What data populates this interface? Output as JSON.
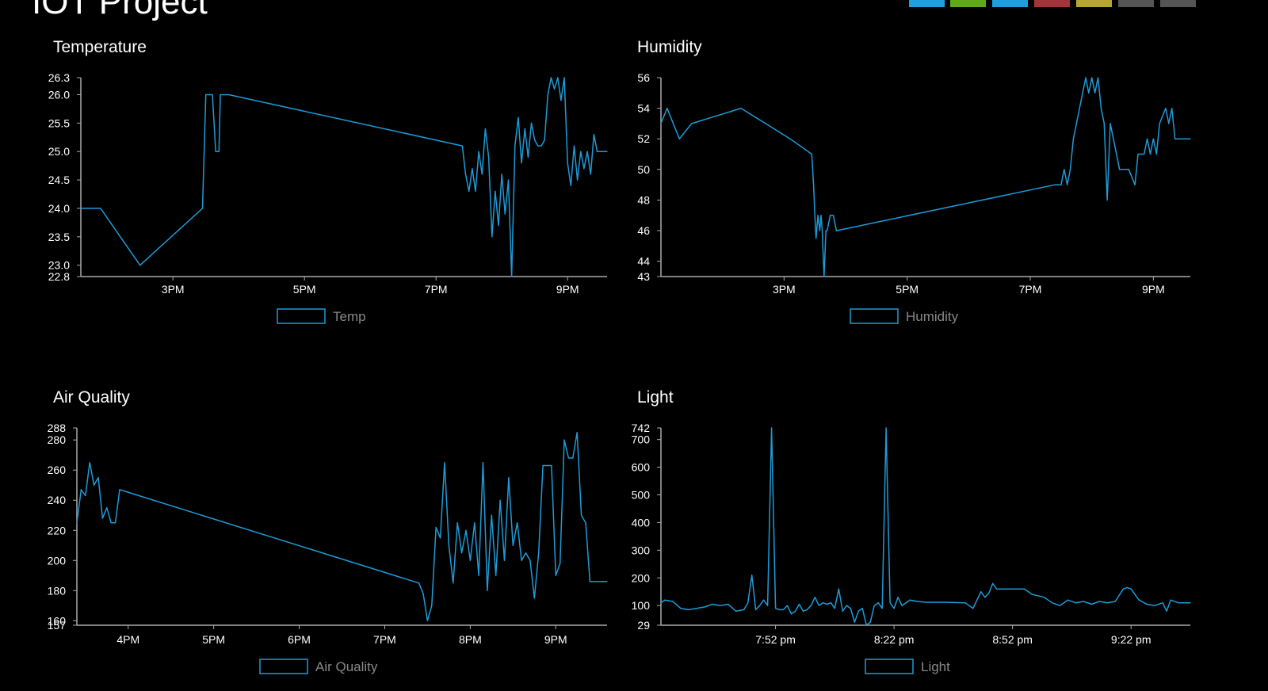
{
  "app_title": "IOT Project",
  "swatches": [
    {
      "name": "swatch-blue",
      "color": "#1ba1e2"
    },
    {
      "name": "swatch-green",
      "color": "#60a917"
    },
    {
      "name": "swatch-blue-2",
      "color": "#1ba1e2"
    },
    {
      "name": "swatch-red",
      "color": "#a4343a"
    },
    {
      "name": "swatch-olive",
      "color": "#b7a531"
    },
    {
      "name": "swatch-gray",
      "color": "#555555"
    },
    {
      "name": "swatch-gray-2",
      "color": "#555555"
    }
  ],
  "line_color": "#1e9bd7",
  "axis_color": "#aaaaaa",
  "chart_data": [
    {
      "id": "temperature",
      "type": "line",
      "title": "Temperature",
      "legend": "Temp",
      "x_axis": "time",
      "x_ticks": [
        "3PM",
        "5PM",
        "7PM",
        "9PM"
      ],
      "x_tick_values": [
        15,
        17,
        19,
        21
      ],
      "xlim": [
        13.6,
        21.6
      ],
      "y_ticks": [
        "22.8",
        "23.0",
        "23.5",
        "24.0",
        "24.5",
        "25.0",
        "25.5",
        "26.0",
        "26.3"
      ],
      "ylim": [
        22.8,
        26.3
      ],
      "points": [
        [
          13.6,
          24.0
        ],
        [
          13.9,
          24.0
        ],
        [
          14.5,
          23.0
        ],
        [
          15.45,
          24.0
        ],
        [
          15.5,
          26.0
        ],
        [
          15.6,
          26.0
        ],
        [
          15.65,
          25.0
        ],
        [
          15.7,
          25.0
        ],
        [
          15.72,
          26.0
        ],
        [
          15.85,
          26.0
        ],
        [
          19.4,
          25.1
        ],
        [
          19.45,
          24.6
        ],
        [
          19.5,
          24.3
        ],
        [
          19.55,
          24.7
        ],
        [
          19.6,
          24.3
        ],
        [
          19.65,
          25.0
        ],
        [
          19.7,
          24.6
        ],
        [
          19.75,
          25.4
        ],
        [
          19.8,
          24.9
        ],
        [
          19.85,
          23.5
        ],
        [
          19.9,
          24.3
        ],
        [
          19.95,
          23.7
        ],
        [
          20.0,
          24.6
        ],
        [
          20.05,
          23.9
        ],
        [
          20.1,
          24.5
        ],
        [
          20.15,
          22.8
        ],
        [
          20.2,
          25.1
        ],
        [
          20.25,
          25.6
        ],
        [
          20.3,
          24.8
        ],
        [
          20.35,
          25.4
        ],
        [
          20.4,
          24.9
        ],
        [
          20.45,
          25.5
        ],
        [
          20.5,
          25.2
        ],
        [
          20.55,
          25.1
        ],
        [
          20.6,
          25.1
        ],
        [
          20.65,
          25.2
        ],
        [
          20.7,
          26.0
        ],
        [
          20.75,
          26.3
        ],
        [
          20.8,
          26.1
        ],
        [
          20.85,
          26.3
        ],
        [
          20.9,
          25.9
        ],
        [
          20.95,
          26.3
        ],
        [
          21.0,
          24.8
        ],
        [
          21.05,
          24.4
        ],
        [
          21.1,
          25.1
        ],
        [
          21.15,
          24.5
        ],
        [
          21.2,
          25.0
        ],
        [
          21.25,
          24.7
        ],
        [
          21.3,
          25.0
        ],
        [
          21.35,
          24.6
        ],
        [
          21.4,
          25.3
        ],
        [
          21.45,
          25.0
        ],
        [
          21.6,
          25.0
        ]
      ]
    },
    {
      "id": "humidity",
      "type": "line",
      "title": "Humidity",
      "legend": "Humidity",
      "x_axis": "time",
      "x_ticks": [
        "3PM",
        "5PM",
        "7PM",
        "9PM"
      ],
      "x_tick_values": [
        15,
        17,
        19,
        21
      ],
      "xlim": [
        13.0,
        21.6
      ],
      "y_ticks": [
        "43",
        "44",
        "46",
        "48",
        "50",
        "52",
        "54",
        "56"
      ],
      "ylim": [
        43,
        56
      ],
      "points": [
        [
          13.0,
          53
        ],
        [
          13.1,
          54
        ],
        [
          13.2,
          53
        ],
        [
          13.3,
          52
        ],
        [
          13.5,
          53
        ],
        [
          13.9,
          53.5
        ],
        [
          14.3,
          54
        ],
        [
          15.1,
          52
        ],
        [
          15.45,
          51
        ],
        [
          15.48,
          49
        ],
        [
          15.5,
          47
        ],
        [
          15.52,
          45.5
        ],
        [
          15.55,
          47
        ],
        [
          15.58,
          46
        ],
        [
          15.6,
          47
        ],
        [
          15.62,
          46
        ],
        [
          15.65,
          43
        ],
        [
          15.68,
          46
        ],
        [
          15.7,
          46
        ],
        [
          15.75,
          47
        ],
        [
          15.8,
          47
        ],
        [
          15.85,
          46
        ],
        [
          19.4,
          49
        ],
        [
          19.5,
          49
        ],
        [
          19.55,
          50
        ],
        [
          19.6,
          49
        ],
        [
          19.65,
          50
        ],
        [
          19.7,
          52
        ],
        [
          19.75,
          53
        ],
        [
          19.8,
          54
        ],
        [
          19.85,
          55
        ],
        [
          19.9,
          56
        ],
        [
          19.95,
          55
        ],
        [
          20.0,
          56
        ],
        [
          20.05,
          55
        ],
        [
          20.1,
          56
        ],
        [
          20.15,
          54
        ],
        [
          20.2,
          53
        ],
        [
          20.25,
          48
        ],
        [
          20.3,
          53
        ],
        [
          20.35,
          52
        ],
        [
          20.4,
          51
        ],
        [
          20.45,
          50
        ],
        [
          20.5,
          50
        ],
        [
          20.6,
          50
        ],
        [
          20.7,
          49
        ],
        [
          20.75,
          51
        ],
        [
          20.85,
          51
        ],
        [
          20.9,
          52
        ],
        [
          20.95,
          51
        ],
        [
          21.0,
          52
        ],
        [
          21.05,
          51
        ],
        [
          21.1,
          53
        ],
        [
          21.2,
          54
        ],
        [
          21.25,
          53
        ],
        [
          21.3,
          54
        ],
        [
          21.35,
          52
        ],
        [
          21.6,
          52
        ]
      ]
    },
    {
      "id": "air-quality",
      "type": "line",
      "title": "Air Quality",
      "legend": "Air Quality",
      "x_axis": "time",
      "x_ticks": [
        "4PM",
        "5PM",
        "6PM",
        "7PM",
        "8PM",
        "9PM"
      ],
      "x_tick_values": [
        16,
        17,
        18,
        19,
        20,
        21
      ],
      "xlim": [
        15.4,
        21.6
      ],
      "y_ticks": [
        "157",
        "160",
        "180",
        "200",
        "220",
        "240",
        "260",
        "280",
        "288"
      ],
      "ylim": [
        157,
        288
      ],
      "points": [
        [
          15.4,
          225
        ],
        [
          15.45,
          247
        ],
        [
          15.5,
          243
        ],
        [
          15.55,
          265
        ],
        [
          15.6,
          250
        ],
        [
          15.65,
          255
        ],
        [
          15.7,
          228
        ],
        [
          15.75,
          235
        ],
        [
          15.8,
          225
        ],
        [
          15.85,
          225
        ],
        [
          15.9,
          247
        ],
        [
          19.4,
          185
        ],
        [
          19.45,
          178
        ],
        [
          19.5,
          160
        ],
        [
          19.55,
          170
        ],
        [
          19.6,
          222
        ],
        [
          19.65,
          215
        ],
        [
          19.7,
          265
        ],
        [
          19.75,
          210
        ],
        [
          19.8,
          185
        ],
        [
          19.85,
          225
        ],
        [
          19.9,
          205
        ],
        [
          19.95,
          220
        ],
        [
          20.0,
          200
        ],
        [
          20.05,
          225
        ],
        [
          20.1,
          190
        ],
        [
          20.15,
          265
        ],
        [
          20.2,
          180
        ],
        [
          20.25,
          230
        ],
        [
          20.3,
          190
        ],
        [
          20.35,
          240
        ],
        [
          20.4,
          200
        ],
        [
          20.45,
          255
        ],
        [
          20.5,
          210
        ],
        [
          20.55,
          225
        ],
        [
          20.6,
          200
        ],
        [
          20.65,
          205
        ],
        [
          20.7,
          200
        ],
        [
          20.75,
          175
        ],
        [
          20.8,
          205
        ],
        [
          20.85,
          263
        ],
        [
          20.9,
          263
        ],
        [
          20.95,
          263
        ],
        [
          21.0,
          190
        ],
        [
          21.05,
          198
        ],
        [
          21.1,
          280
        ],
        [
          21.15,
          268
        ],
        [
          21.2,
          268
        ],
        [
          21.25,
          285
        ],
        [
          21.3,
          230
        ],
        [
          21.35,
          225
        ],
        [
          21.4,
          186
        ],
        [
          21.6,
          186
        ]
      ]
    },
    {
      "id": "light",
      "type": "line",
      "title": "Light",
      "legend": "Light",
      "x_axis": "time",
      "x_ticks": [
        "7:52 pm",
        "8:22 pm",
        "8:52 pm",
        "9:22 pm"
      ],
      "x_tick_values": [
        52,
        82,
        112,
        142
      ],
      "xlim": [
        23,
        157
      ],
      "y_ticks": [
        "29",
        "100",
        "200",
        "300",
        "400",
        "500",
        "600",
        "700",
        "742"
      ],
      "ylim": [
        29,
        742
      ],
      "points": [
        [
          23,
          110
        ],
        [
          24,
          120
        ],
        [
          26,
          115
        ],
        [
          28,
          90
        ],
        [
          30,
          85
        ],
        [
          32,
          90
        ],
        [
          34,
          95
        ],
        [
          36,
          105
        ],
        [
          38,
          100
        ],
        [
          40,
          105
        ],
        [
          42,
          80
        ],
        [
          44,
          85
        ],
        [
          45,
          110
        ],
        [
          46,
          210
        ],
        [
          47,
          85
        ],
        [
          48,
          100
        ],
        [
          49,
          120
        ],
        [
          50,
          100
        ],
        [
          51,
          742
        ],
        [
          52,
          90
        ],
        [
          53,
          85
        ],
        [
          54,
          85
        ],
        [
          55,
          100
        ],
        [
          56,
          70
        ],
        [
          57,
          80
        ],
        [
          58,
          105
        ],
        [
          59,
          80
        ],
        [
          60,
          85
        ],
        [
          61,
          100
        ],
        [
          62,
          130
        ],
        [
          63,
          100
        ],
        [
          64,
          110
        ],
        [
          65,
          105
        ],
        [
          66,
          110
        ],
        [
          67,
          90
        ],
        [
          68,
          160
        ],
        [
          69,
          80
        ],
        [
          70,
          100
        ],
        [
          71,
          90
        ],
        [
          72,
          40
        ],
        [
          73,
          80
        ],
        [
          74,
          90
        ],
        [
          75,
          29
        ],
        [
          76,
          40
        ],
        [
          77,
          100
        ],
        [
          78,
          110
        ],
        [
          79,
          90
        ],
        [
          80,
          742
        ],
        [
          81,
          110
        ],
        [
          82,
          90
        ],
        [
          83,
          130
        ],
        [
          84,
          100
        ],
        [
          85,
          110
        ],
        [
          86,
          120
        ],
        [
          88,
          115
        ],
        [
          90,
          112
        ],
        [
          95,
          112
        ],
        [
          100,
          110
        ],
        [
          101,
          100
        ],
        [
          102,
          90
        ],
        [
          104,
          150
        ],
        [
          105,
          130
        ],
        [
          106,
          145
        ],
        [
          107,
          180
        ],
        [
          108,
          160
        ],
        [
          110,
          160
        ],
        [
          115,
          160
        ],
        [
          117,
          140
        ],
        [
          120,
          130
        ],
        [
          122,
          110
        ],
        [
          124,
          100
        ],
        [
          126,
          120
        ],
        [
          128,
          110
        ],
        [
          130,
          115
        ],
        [
          132,
          105
        ],
        [
          134,
          115
        ],
        [
          136,
          110
        ],
        [
          138,
          115
        ],
        [
          140,
          160
        ],
        [
          141,
          165
        ],
        [
          142,
          160
        ],
        [
          144,
          120
        ],
        [
          146,
          105
        ],
        [
          148,
          100
        ],
        [
          150,
          110
        ],
        [
          151,
          80
        ],
        [
          152,
          120
        ],
        [
          154,
          110
        ],
        [
          157,
          110
        ]
      ]
    }
  ]
}
